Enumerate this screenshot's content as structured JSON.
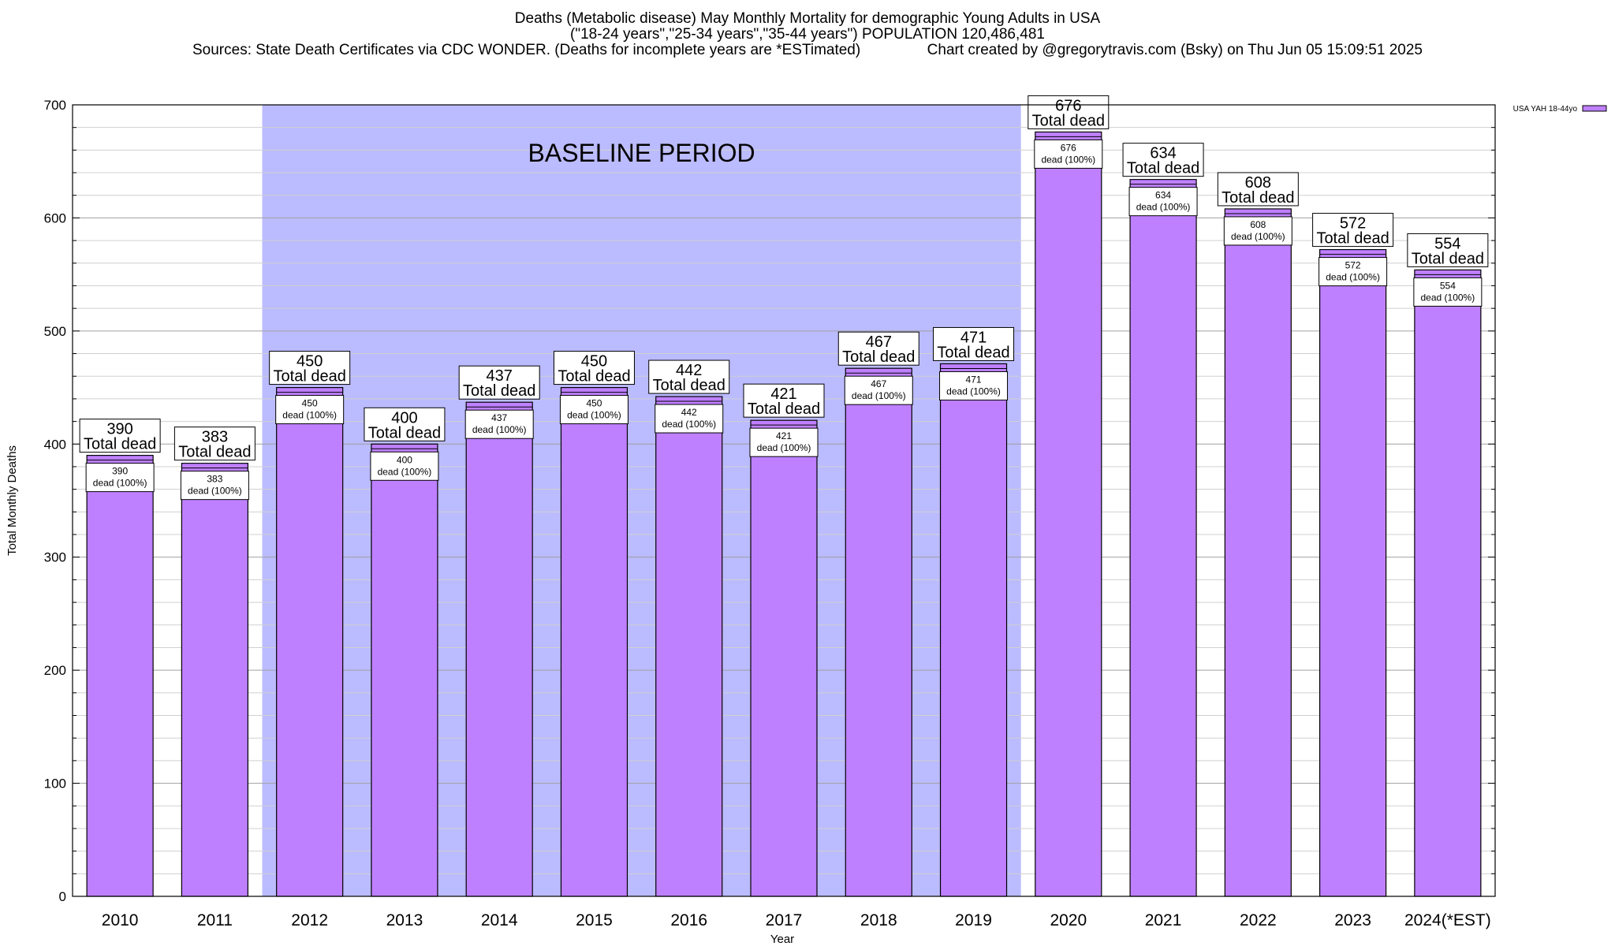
{
  "chart_data": {
    "type": "bar",
    "title": "Deaths (Metabolic disease) May Monthly Mortality for demographic Young Adults in USA",
    "subtitle": "(\"18-24 years\",\"25-34 years\",\"35-44 years\") POPULATION 120,486,481",
    "sources": "Sources: State Death Certificates via CDC WONDER. (Deaths for incomplete years are *ESTimated)",
    "credit": "Chart created by @gregorytravis.com (Bsky) on Thu Jun 05 15:09:51 2025",
    "xlabel": "Year",
    "ylabel": "Total Monthly Deaths",
    "categories": [
      "2010",
      "2011",
      "2012",
      "2013",
      "2014",
      "2015",
      "2016",
      "2017",
      "2018",
      "2019",
      "2020",
      "2021",
      "2022",
      "2023",
      "2024(*EST)"
    ],
    "series": [
      {
        "name": "USA YAH 18-44yo",
        "color": "#bf80ff",
        "values": [
          390,
          383,
          450,
          400,
          437,
          450,
          442,
          421,
          467,
          471,
          676,
          634,
          608,
          572,
          554
        ]
      }
    ],
    "ylim": [
      0,
      700
    ],
    "yticks": [
      "0",
      "100",
      "200",
      "300",
      "400",
      "500",
      "600",
      "700"
    ],
    "grid": true,
    "legend_position": "top-right",
    "baseline_label": "BASELINE PERIOD",
    "baseline_range": [
      "2012",
      "2019"
    ],
    "baseline_color": "#bbbbff",
    "top_label_suffix": "Total dead",
    "inner_label_suffix": "dead (100%)"
  }
}
